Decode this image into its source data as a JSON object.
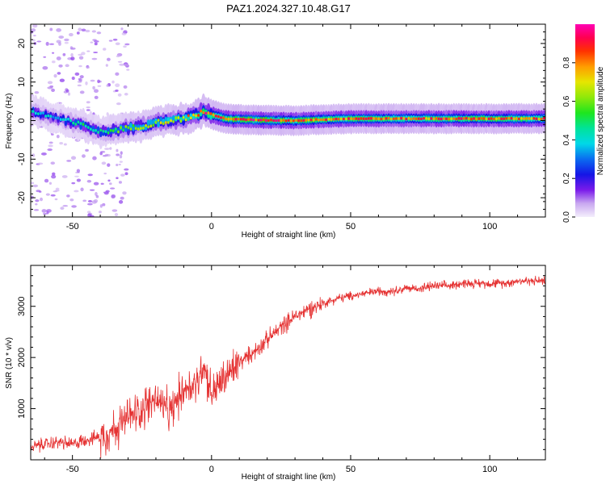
{
  "figure_title": "PAZ1.2024.327.10.48.G17",
  "colors": {
    "axis": "#000000",
    "snr_line": "#e53232",
    "background": "#ffffff"
  },
  "chart_data": [
    {
      "type": "heatmap",
      "title": "PAZ1.2024.327.10.48.G17",
      "xlabel": "Height of straight line (km)",
      "ylabel": "Frequency (Hz)",
      "xlim": [
        -65,
        120
      ],
      "ylim": [
        -25,
        25
      ],
      "x_ticks": [
        -50,
        0,
        50,
        100
      ],
      "x_tick_labels": [
        "-50",
        "0",
        "50",
        "100"
      ],
      "y_ticks": [
        20,
        10,
        0,
        -10,
        -20
      ],
      "y_tick_labels": [
        "20",
        "10",
        "0",
        "-10",
        "-20"
      ],
      "colorbar": {
        "label": "Normalized spectral amplitude",
        "range": [
          0,
          1
        ],
        "ticks": [
          0.0,
          0.2,
          0.4,
          0.6,
          0.8
        ],
        "tick_labels": [
          "0.0",
          "0.2",
          "0.4",
          "0.6",
          "0.8"
        ],
        "colormap": "rainbow (white-violet-blue-cyan-green-yellow-orange-red-magenta)"
      },
      "ridge": {
        "description": "Frequency of peak spectral amplitude vs straight-line height",
        "x": [
          -65,
          -60,
          -55,
          -50,
          -45,
          -40,
          -35,
          -30,
          -25,
          -20,
          -15,
          -10,
          -5,
          -3,
          0,
          5,
          10,
          20,
          30,
          40,
          50,
          60,
          70,
          80,
          90,
          100,
          110,
          120
        ],
        "y": [
          2.5,
          1.5,
          0.5,
          -0.5,
          -1.5,
          -3,
          -2.5,
          -2,
          -1.5,
          -0.5,
          0,
          0.5,
          1.5,
          2.5,
          1.5,
          0.5,
          0.3,
          0.1,
          0,
          0.3,
          0.5,
          0.5,
          0.5,
          0.5,
          0.5,
          0.5,
          0.5,
          0.5
        ],
        "amplitude": [
          0.45,
          0.4,
          0.35,
          0.45,
          0.5,
          0.45,
          0.55,
          0.6,
          0.6,
          0.65,
          0.7,
          0.75,
          0.8,
          0.9,
          0.85,
          0.85,
          0.9,
          0.9,
          0.85,
          0.85,
          0.85,
          0.85,
          0.85,
          0.85,
          0.85,
          0.85,
          0.85,
          0.85
        ]
      },
      "grid": false
    },
    {
      "type": "line",
      "xlabel": "Height of straight line (km)",
      "ylabel": "SNR (10 * v/v)",
      "xlim": [
        -65,
        120
      ],
      "ylim": [
        0,
        3800
      ],
      "x_ticks": [
        -50,
        0,
        50,
        100
      ],
      "x_tick_labels": [
        "-50",
        "0",
        "50",
        "100"
      ],
      "y_ticks": [
        1000,
        2000,
        3000
      ],
      "y_tick_labels": [
        "1000",
        "2000",
        "3000"
      ],
      "grid": false,
      "series": [
        {
          "x": [
            -65,
            -60,
            -55,
            -50,
            -45,
            -40,
            -35,
            -30,
            -25,
            -20,
            -15,
            -10,
            -5,
            -3,
            0,
            5,
            10,
            15,
            20,
            25,
            30,
            35,
            40,
            45,
            50,
            55,
            60,
            65,
            70,
            75,
            80,
            85,
            90,
            95,
            100,
            105,
            110,
            115,
            120
          ],
          "y": [
            250,
            300,
            350,
            300,
            400,
            450,
            600,
            800,
            1000,
            1200,
            900,
            1400,
            1500,
            1900,
            1300,
            1600,
            1900,
            2100,
            2350,
            2600,
            2800,
            2950,
            3050,
            3150,
            3200,
            3250,
            3300,
            3300,
            3350,
            3350,
            3400,
            3400,
            3450,
            3450,
            3450,
            3450,
            3500,
            3500,
            3500
          ]
        }
      ]
    }
  ]
}
